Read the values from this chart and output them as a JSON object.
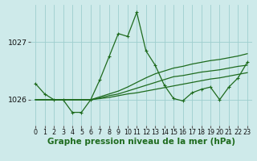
{
  "title": "Graphe pression niveau de la mer (hPa)",
  "bg_color": "#ceeaea",
  "line_color": "#1e6b1e",
  "grid_color": "#9ecece",
  "title_color": "#1e6b1e",
  "xlim": [
    -0.5,
    23.5
  ],
  "ylim": [
    1025.55,
    1027.65
  ],
  "yticks": [
    1026,
    1027
  ],
  "xticks": [
    0,
    1,
    2,
    3,
    4,
    5,
    6,
    7,
    8,
    9,
    10,
    11,
    12,
    13,
    14,
    15,
    16,
    17,
    18,
    19,
    20,
    21,
    22,
    23
  ],
  "main_line": [
    1026.28,
    1026.1,
    1026.0,
    1026.0,
    1025.78,
    1025.78,
    1026.0,
    1026.35,
    1026.75,
    1027.15,
    1027.1,
    1027.52,
    1026.85,
    1026.6,
    1026.25,
    1026.02,
    1025.98,
    1026.12,
    1026.18,
    1026.22,
    1026.0,
    1026.22,
    1026.38,
    1026.65
  ],
  "trend1": [
    1026.0,
    1026.0,
    1026.0,
    1026.0,
    1026.0,
    1026.0,
    1026.0,
    1026.02,
    1026.04,
    1026.07,
    1026.1,
    1026.12,
    1026.15,
    1026.18,
    1026.21,
    1026.24,
    1026.27,
    1026.3,
    1026.33,
    1026.36,
    1026.38,
    1026.41,
    1026.44,
    1026.47
  ],
  "trend2": [
    1026.0,
    1026.0,
    1026.0,
    1026.0,
    1026.0,
    1026.0,
    1026.0,
    1026.03,
    1026.07,
    1026.1,
    1026.15,
    1026.2,
    1026.25,
    1026.3,
    1026.35,
    1026.4,
    1026.42,
    1026.45,
    1026.48,
    1026.5,
    1026.52,
    1026.55,
    1026.58,
    1026.6
  ],
  "trend3": [
    1026.0,
    1026.0,
    1026.0,
    1026.0,
    1026.0,
    1026.0,
    1026.0,
    1026.05,
    1026.1,
    1026.15,
    1026.22,
    1026.3,
    1026.38,
    1026.45,
    1026.5,
    1026.55,
    1026.58,
    1026.62,
    1026.65,
    1026.68,
    1026.7,
    1026.73,
    1026.76,
    1026.8
  ],
  "marker": "+",
  "markersize": 3.5,
  "linewidth": 0.9,
  "title_fontsize": 7.5,
  "tick_fontsize": 5.8
}
